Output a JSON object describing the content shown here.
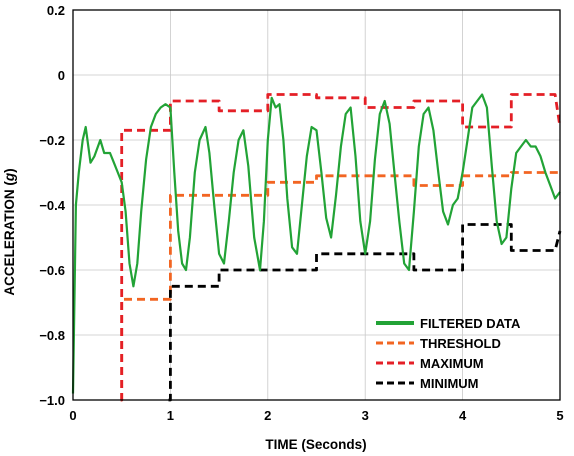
{
  "chart_data": {
    "type": "line",
    "xlabel": "TIME (Seconds)",
    "ylabel": "ACCELERATION (g)",
    "xlim": [
      0,
      5
    ],
    "ylim": [
      -1.0,
      0.2
    ],
    "xticks": [
      0,
      1,
      2,
      3,
      4,
      5
    ],
    "xtick_labels": [
      "0",
      "1",
      "2",
      "3",
      "4",
      "5"
    ],
    "yticks": [
      0.2,
      0,
      -0.2,
      -0.4,
      -0.6,
      -0.8,
      -1.0
    ],
    "ytick_labels": [
      "0.2",
      "0",
      "−0.2",
      "−0.4",
      "−0.6",
      "−0.8",
      "−1.0"
    ],
    "grid": true,
    "legend_position": "bottom-right",
    "series": [
      {
        "name": "FILTERED DATA",
        "style": "solid",
        "color": "#22a336",
        "x": [
          0.0,
          0.03,
          0.06,
          0.1,
          0.13,
          0.18,
          0.22,
          0.28,
          0.32,
          0.38,
          0.42,
          0.46,
          0.5,
          0.54,
          0.58,
          0.62,
          0.66,
          0.7,
          0.75,
          0.8,
          0.85,
          0.9,
          0.95,
          1.0,
          1.04,
          1.08,
          1.12,
          1.16,
          1.2,
          1.25,
          1.3,
          1.36,
          1.4,
          1.45,
          1.5,
          1.55,
          1.6,
          1.65,
          1.7,
          1.75,
          1.8,
          1.86,
          1.92,
          1.96,
          2.0,
          2.04,
          2.08,
          2.12,
          2.16,
          2.2,
          2.25,
          2.3,
          2.35,
          2.4,
          2.45,
          2.5,
          2.55,
          2.6,
          2.65,
          2.7,
          2.75,
          2.8,
          2.85,
          2.9,
          2.95,
          3.0,
          3.05,
          3.1,
          3.15,
          3.2,
          3.25,
          3.3,
          3.35,
          3.4,
          3.45,
          3.5,
          3.55,
          3.6,
          3.65,
          3.7,
          3.75,
          3.8,
          3.85,
          3.9,
          3.95,
          4.0,
          4.05,
          4.1,
          4.15,
          4.2,
          4.25,
          4.3,
          4.35,
          4.4,
          4.45,
          4.5,
          4.55,
          4.6,
          4.65,
          4.7,
          4.75,
          4.8,
          4.85,
          4.9,
          4.95,
          5.0
        ],
        "values": [
          -0.98,
          -0.4,
          -0.3,
          -0.2,
          -0.16,
          -0.27,
          -0.25,
          -0.2,
          -0.24,
          -0.24,
          -0.27,
          -0.3,
          -0.33,
          -0.42,
          -0.58,
          -0.65,
          -0.58,
          -0.42,
          -0.26,
          -0.16,
          -0.12,
          -0.1,
          -0.09,
          -0.1,
          -0.3,
          -0.48,
          -0.58,
          -0.6,
          -0.5,
          -0.3,
          -0.2,
          -0.16,
          -0.24,
          -0.4,
          -0.55,
          -0.58,
          -0.45,
          -0.3,
          -0.2,
          -0.17,
          -0.28,
          -0.5,
          -0.6,
          -0.45,
          -0.2,
          -0.07,
          -0.1,
          -0.09,
          -0.2,
          -0.38,
          -0.53,
          -0.55,
          -0.4,
          -0.25,
          -0.16,
          -0.17,
          -0.3,
          -0.44,
          -0.5,
          -0.37,
          -0.22,
          -0.12,
          -0.1,
          -0.25,
          -0.45,
          -0.55,
          -0.45,
          -0.26,
          -0.12,
          -0.08,
          -0.15,
          -0.3,
          -0.45,
          -0.58,
          -0.6,
          -0.42,
          -0.22,
          -0.12,
          -0.1,
          -0.17,
          -0.3,
          -0.42,
          -0.46,
          -0.4,
          -0.38,
          -0.3,
          -0.2,
          -0.1,
          -0.08,
          -0.06,
          -0.1,
          -0.28,
          -0.45,
          -0.52,
          -0.5,
          -0.35,
          -0.24,
          -0.22,
          -0.2,
          -0.22,
          -0.22,
          -0.25,
          -0.3,
          -0.34,
          -0.38,
          -0.36
        ]
      },
      {
        "name": "THRESHOLD",
        "style": "dashed",
        "color": "#f26522",
        "x": [
          0.49,
          0.5,
          0.5,
          0.98,
          1.0,
          1.0,
          2.0,
          2.0,
          2.5,
          2.5,
          3.5,
          3.5,
          4.0,
          4.0,
          4.5,
          4.5,
          5.0
        ],
        "values": [
          -1.0,
          -1.0,
          -0.69,
          -0.69,
          -0.69,
          -0.37,
          -0.37,
          -0.33,
          -0.33,
          -0.31,
          -0.31,
          -0.34,
          -0.34,
          -0.31,
          -0.31,
          -0.3,
          -0.3
        ]
      },
      {
        "name": "MAXIMUM",
        "style": "dashed",
        "color": "#e41f26",
        "x": [
          0.49,
          0.5,
          0.5,
          1.0,
          1.0,
          1.5,
          1.5,
          2.0,
          2.0,
          2.5,
          2.5,
          3.0,
          3.0,
          3.5,
          3.5,
          4.0,
          4.0,
          4.5,
          4.5,
          4.95,
          5.0
        ],
        "values": [
          -1.0,
          -1.0,
          -0.17,
          -0.17,
          -0.08,
          -0.08,
          -0.11,
          -0.11,
          -0.06,
          -0.06,
          -0.07,
          -0.07,
          -0.1,
          -0.1,
          -0.08,
          -0.08,
          -0.16,
          -0.16,
          -0.06,
          -0.06,
          -0.16
        ]
      },
      {
        "name": "MINIMUM",
        "style": "dashed",
        "color": "#000000",
        "x": [
          0.98,
          1.0,
          1.0,
          1.5,
          1.5,
          2.0,
          2.0,
          2.5,
          2.5,
          3.0,
          3.0,
          3.5,
          3.5,
          4.0,
          4.0,
          4.5,
          4.5,
          4.95,
          5.0
        ],
        "values": [
          -1.0,
          -1.0,
          -0.65,
          -0.65,
          -0.6,
          -0.6,
          -0.6,
          -0.6,
          -0.55,
          -0.55,
          -0.55,
          -0.55,
          -0.6,
          -0.6,
          -0.46,
          -0.46,
          -0.54,
          -0.54,
          -0.48
        ]
      }
    ]
  }
}
